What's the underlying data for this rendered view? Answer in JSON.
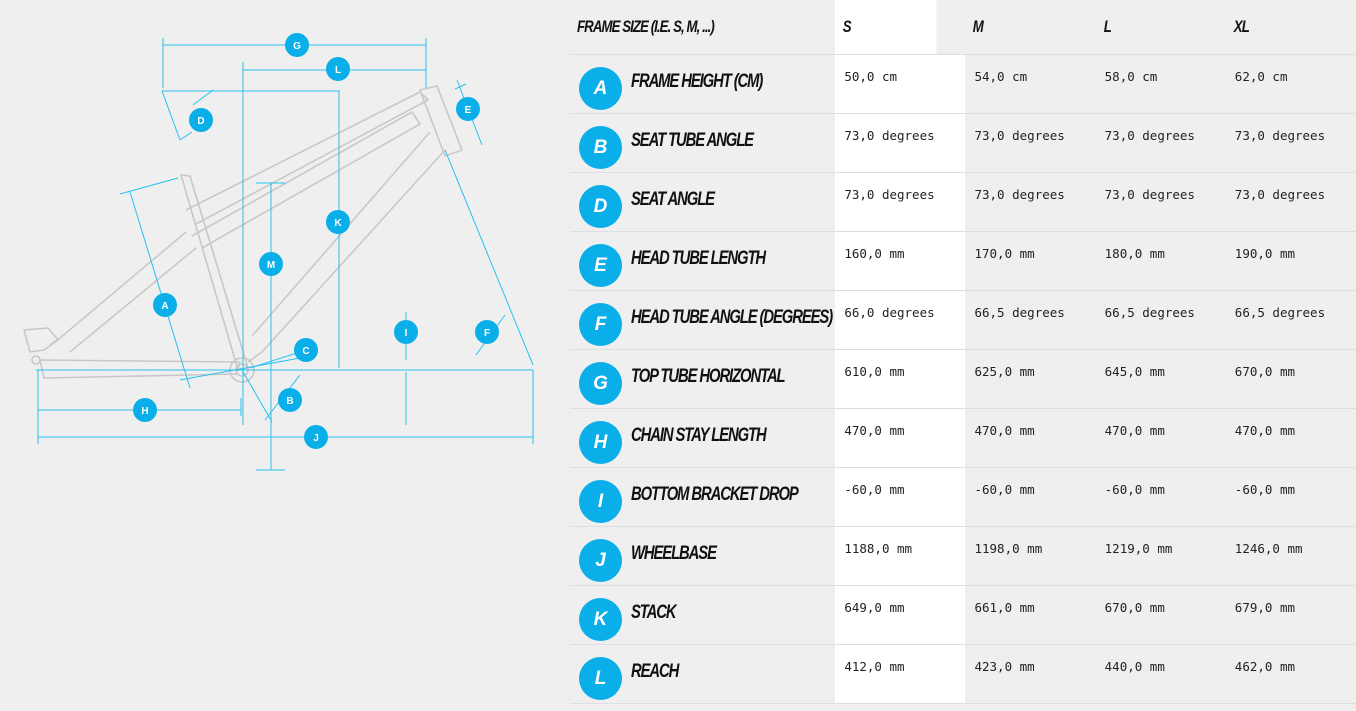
{
  "colors": {
    "accent": "#0aaee8",
    "frame_line": "#c8c8c8",
    "background": "#efefef",
    "selected_column": "#ffffff"
  },
  "diagram": {
    "labels": {
      "A": "A",
      "B": "B",
      "C": "C",
      "D": "D",
      "E": "E",
      "F": "F",
      "G": "G",
      "H": "H",
      "I": "I",
      "J": "J",
      "K": "K",
      "L": "L",
      "M": "M"
    }
  },
  "table": {
    "header": {
      "label": "FRAME SIZE (I.E. S, M, ...)",
      "sizes": [
        "S",
        "M",
        "L",
        "XL"
      ],
      "selected_size": "S"
    },
    "rows": [
      {
        "code": "A",
        "name": "FRAME HEIGHT (CM)",
        "values": [
          "50,0 cm",
          "54,0 cm",
          "58,0 cm",
          "62,0 cm"
        ]
      },
      {
        "code": "B",
        "name": "SEAT TUBE ANGLE",
        "values": [
          "73,0 degrees",
          "73,0 degrees",
          "73,0 degrees",
          "73,0 degrees"
        ]
      },
      {
        "code": "D",
        "name": "SEAT ANGLE",
        "values": [
          "73,0 degrees",
          "73,0 degrees",
          "73,0 degrees",
          "73,0 degrees"
        ]
      },
      {
        "code": "E",
        "name": "HEAD TUBE LENGTH",
        "values": [
          "160,0 mm",
          "170,0 mm",
          "180,0 mm",
          "190,0 mm"
        ]
      },
      {
        "code": "F",
        "name": "HEAD TUBE ANGLE (DEGREES)",
        "values": [
          "66,0 degrees",
          "66,5 degrees",
          "66,5 degrees",
          "66,5 degrees"
        ]
      },
      {
        "code": "G",
        "name": "TOP TUBE HORIZONTAL",
        "values": [
          "610,0 mm",
          "625,0 mm",
          "645,0 mm",
          "670,0 mm"
        ]
      },
      {
        "code": "H",
        "name": "CHAIN STAY LENGTH",
        "values": [
          "470,0 mm",
          "470,0 mm",
          "470,0 mm",
          "470,0 mm"
        ]
      },
      {
        "code": "I",
        "name": "BOTTOM BRACKET DROP",
        "values": [
          "-60,0 mm",
          "-60,0 mm",
          "-60,0 mm",
          "-60,0 mm"
        ]
      },
      {
        "code": "J",
        "name": "WHEELBASE",
        "values": [
          "1188,0 mm",
          "1198,0 mm",
          "1219,0 mm",
          "1246,0 mm"
        ]
      },
      {
        "code": "K",
        "name": "STACK",
        "values": [
          "649,0 mm",
          "661,0 mm",
          "670,0 mm",
          "679,0 mm"
        ]
      },
      {
        "code": "L",
        "name": "REACH",
        "values": [
          "412,0 mm",
          "423,0 mm",
          "440,0 mm",
          "462,0 mm"
        ]
      }
    ]
  }
}
